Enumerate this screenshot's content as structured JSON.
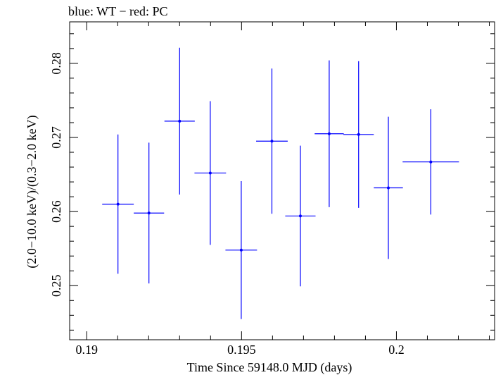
{
  "chart_data": {
    "type": "scatter",
    "title": "blue: WT − red: PC",
    "xlabel": "Time Since 59148.0 MJD (days)",
    "ylabel": "(2.0−10.0 keV)/(0.3−2.0 keV)",
    "xlim": [
      0.18945,
      0.20317
    ],
    "ylim": [
      0.2427,
      0.2856
    ],
    "x_ticks": [
      0.19,
      0.195,
      0.2
    ],
    "x_tick_labels": [
      "0.19",
      "0.195",
      "0.2"
    ],
    "y_ticks": [
      0.25,
      0.26,
      0.27,
      0.28
    ],
    "y_tick_labels": [
      "0.25",
      "0.26",
      "0.27",
      "0.28"
    ],
    "grid": false,
    "legend": "none",
    "series": [
      {
        "color": "#0000ff",
        "points": [
          {
            "x": 0.19101,
            "xerr": 0.00051,
            "y": 0.261,
            "yerr": 0.0094
          },
          {
            "x": 0.19201,
            "xerr": 0.00049,
            "y": 0.2598,
            "yerr": 0.0095
          },
          {
            "x": 0.193,
            "xerr": 0.00049,
            "y": 0.2722,
            "yerr": 0.0099
          },
          {
            "x": 0.19399,
            "xerr": 0.00051,
            "y": 0.2652,
            "yerr": 0.0097
          },
          {
            "x": 0.19499,
            "xerr": 0.00051,
            "y": 0.2548,
            "yerr": 0.0093
          },
          {
            "x": 0.19598,
            "xerr": 0.00051,
            "y": 0.2695,
            "yerr": 0.0098
          },
          {
            "x": 0.1969,
            "xerr": 0.00049,
            "y": 0.2594,
            "yerr": 0.0095
          },
          {
            "x": 0.19783,
            "xerr": 0.00047,
            "y": 0.2705,
            "yerr": 0.0099
          },
          {
            "x": 0.19878,
            "xerr": 0.00049,
            "y": 0.2704,
            "yerr": 0.0099
          },
          {
            "x": 0.19974,
            "xerr": 0.00047,
            "y": 0.2632,
            "yerr": 0.0096
          },
          {
            "x": 0.20111,
            "xerr": 0.00091,
            "y": 0.2667,
            "yerr": 0.0071
          }
        ]
      }
    ]
  }
}
